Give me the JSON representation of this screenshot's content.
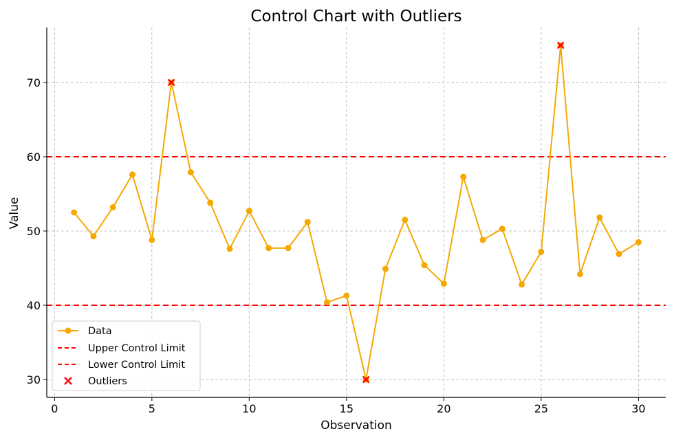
{
  "chart_data": {
    "type": "line",
    "title": "Control Chart with Outliers",
    "xlabel": "Observation",
    "ylabel": "Value",
    "xlim": [
      -0.4,
      31.4
    ],
    "ylim": [
      27.6,
      77.4
    ],
    "xticks": [
      0,
      5,
      10,
      15,
      20,
      25,
      30
    ],
    "yticks": [
      30,
      40,
      50,
      60,
      70
    ],
    "grid": true,
    "legend_position": "lower-left",
    "x": [
      1,
      2,
      3,
      4,
      5,
      6,
      7,
      8,
      9,
      10,
      11,
      12,
      13,
      14,
      15,
      16,
      17,
      18,
      19,
      20,
      21,
      22,
      23,
      24,
      25,
      26,
      27,
      28,
      29,
      30
    ],
    "series": [
      {
        "name": "Data",
        "color": "#f5a800",
        "values": [
          52.5,
          49.3,
          53.2,
          57.6,
          48.8,
          70.0,
          57.9,
          53.8,
          47.6,
          52.7,
          47.7,
          47.7,
          51.2,
          40.4,
          41.3,
          30.0,
          44.9,
          51.5,
          45.4,
          42.9,
          57.3,
          48.8,
          50.3,
          42.8,
          47.2,
          75.0,
          44.2,
          51.8,
          46.9,
          48.5
        ]
      }
    ],
    "control_limits": [
      {
        "name": "Upper Control Limit",
        "value": 60,
        "color": "#ff0000"
      },
      {
        "name": "Lower Control Limit",
        "value": 40,
        "color": "#ff0000"
      }
    ],
    "outliers": {
      "name": "Outliers",
      "color": "#ff0000",
      "points": [
        {
          "x": 6,
          "y": 70
        },
        {
          "x": 16,
          "y": 30
        },
        {
          "x": 26,
          "y": 75
        }
      ]
    }
  }
}
